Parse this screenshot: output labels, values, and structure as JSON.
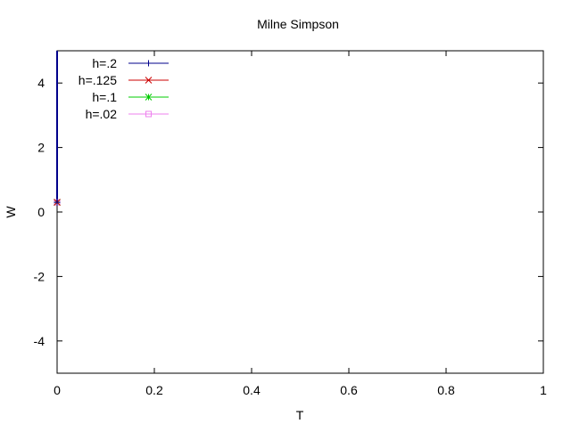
{
  "chart_data": {
    "type": "line",
    "title": "Milne Simpson",
    "xlabel": "T",
    "ylabel": "W",
    "xlim": [
      0,
      1
    ],
    "ylim": [
      -5,
      5
    ],
    "xticks": [
      0,
      0.2,
      0.4,
      0.6,
      0.8,
      1
    ],
    "xtick_labels": [
      "0",
      "0.2",
      "0.4",
      "0.6",
      "0.8",
      "1"
    ],
    "yticks": [
      -4,
      -2,
      0,
      2,
      4
    ],
    "ytick_labels": [
      "-4",
      "-2",
      "0",
      "2",
      "4"
    ],
    "grid": false,
    "legend_position": "top-left",
    "series": [
      {
        "name": "h=.2",
        "color": "#00008b",
        "marker": "plus",
        "points": [
          [
            0,
            0.3
          ],
          [
            0,
            5
          ]
        ]
      },
      {
        "name": "h=.125",
        "color": "#cc0000",
        "marker": "cross",
        "points": [
          [
            0,
            0.3
          ],
          [
            0,
            5
          ]
        ]
      },
      {
        "name": "h=.1",
        "color": "#00cc00",
        "marker": "star",
        "points": [
          [
            0,
            0.3
          ],
          [
            0,
            5
          ]
        ]
      },
      {
        "name": "h=.02",
        "color": "#ee82ee",
        "marker": "square",
        "points": [
          [
            0,
            0.3
          ],
          [
            0,
            5
          ]
        ]
      }
    ]
  }
}
